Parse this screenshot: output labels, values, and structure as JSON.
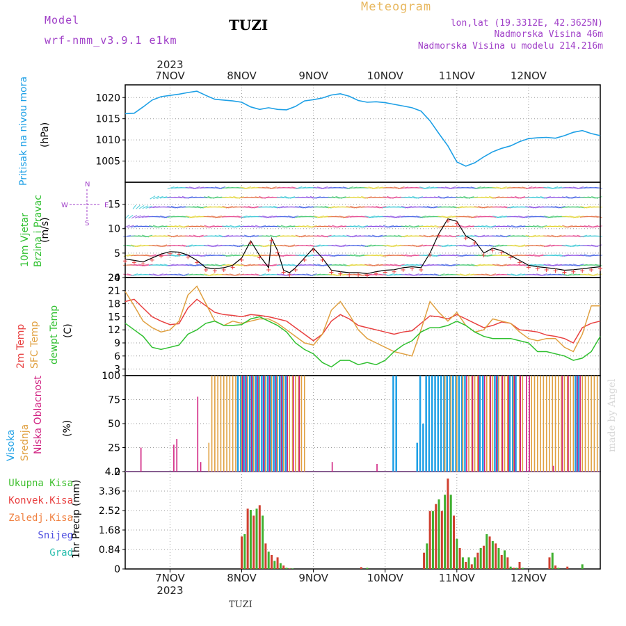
{
  "header": {
    "model_caption": "Model",
    "model_name": "wrf-nmm_v3.9.1 e1km",
    "station": "TUZI",
    "meteogram_label": "Meteogram",
    "coords": "lon,lat (19.3312E, 42.3625N)",
    "elevation": "Nadmorska Visina 46m",
    "model_elevation": "Nadmorska Visina u modelu 214.216m"
  },
  "footer": {
    "station": "TUZI",
    "watermark": "made by Angel"
  },
  "colors": {
    "pressure": "#1ea0e6",
    "temp2m": "#e84040",
    "sfc_temp": "#e0a040",
    "dewpoint": "#30c030",
    "cloud_high": "#1ea0e6",
    "cloud_mid": "#e0a040",
    "cloud_low": "#d02080",
    "precip_total": "#40b030",
    "precip_conv": "#d04030",
    "grid": "#999999",
    "violet": "#a040c8"
  },
  "time_axis": {
    "year": "2023",
    "dates": [
      "7NOV",
      "8NOV",
      "9NOV",
      "10NOV",
      "11NOV",
      "12NOV"
    ],
    "range_hours": [
      -15,
      144
    ],
    "tick_hours": [
      0,
      24,
      48,
      72,
      96,
      120
    ]
  },
  "chart_data": [
    {
      "id": "pressure",
      "type": "line",
      "ylabel": "Pritisak na nivou mora",
      "unit": "(hPa)",
      "ylim": [
        1000,
        1023
      ],
      "yticks": [
        1005,
        1010,
        1015,
        1020
      ],
      "grid": true,
      "x": [
        -15,
        -12,
        -9,
        -6,
        -3,
        0,
        3,
        6,
        9,
        12,
        15,
        18,
        21,
        24,
        27,
        30,
        33,
        36,
        39,
        42,
        45,
        48,
        51,
        54,
        57,
        60,
        63,
        66,
        69,
        72,
        75,
        78,
        81,
        84,
        87,
        90,
        93,
        96,
        99,
        102,
        105,
        108,
        111,
        114,
        117,
        120,
        123,
        126,
        129,
        132,
        135,
        138,
        141,
        144
      ],
      "values": [
        1016.2,
        1016.3,
        1017.8,
        1019.4,
        1020.2,
        1020.5,
        1020.8,
        1021.2,
        1021.5,
        1020.5,
        1019.6,
        1019.4,
        1019.2,
        1018.9,
        1017.8,
        1017.2,
        1017.6,
        1017.2,
        1017.1,
        1017.9,
        1019.2,
        1019.5,
        1019.9,
        1020.6,
        1020.9,
        1020.3,
        1019.3,
        1018.9,
        1019.0,
        1018.8,
        1018.4,
        1018.0,
        1017.6,
        1016.8,
        1014.5,
        1011.5,
        1008.6,
        1004.8,
        1003.8,
        1004.6,
        1006.0,
        1007.2,
        1008.0,
        1008.6,
        1009.6,
        1010.3,
        1010.5,
        1010.6,
        1010.4,
        1011.0,
        1011.8,
        1012.2,
        1011.5,
        1011.0
      ]
    },
    {
      "id": "wind",
      "type": "line",
      "ylabel": "10m Vjetar Brzina i Pravac",
      "unit": "(m/s)",
      "compass": {
        "north": "N",
        "west": "W",
        "east": "E",
        "south": "S"
      },
      "ylim": [
        0,
        19.5
      ],
      "yticks": [
        0,
        5,
        10,
        15
      ],
      "grid": true,
      "series": [
        {
          "x": [
            -15,
            -12,
            -9,
            -6,
            -3,
            0,
            3,
            6,
            9,
            12,
            15,
            18,
            21,
            24,
            27,
            30,
            33,
            34,
            36,
            38,
            40,
            42,
            45,
            48,
            51,
            54,
            57,
            60,
            63,
            66,
            69,
            72,
            75,
            78,
            81,
            84,
            87,
            90,
            93,
            96,
            99,
            102,
            105,
            108,
            111,
            114,
            117,
            120,
            123,
            126,
            129,
            132,
            135,
            138,
            141,
            144
          ],
          "values": [
            3.8,
            3.5,
            3.2,
            4.0,
            4.8,
            5.3,
            5.2,
            4.6,
            3.5,
            2.0,
            1.8,
            2.0,
            2.5,
            4.0,
            7.5,
            4.5,
            2.0,
            8.0,
            5.5,
            1.5,
            1.0,
            2.0,
            4.0,
            6.0,
            4.0,
            1.5,
            1.2,
            1.0,
            1.0,
            0.8,
            1.2,
            1.5,
            1.6,
            2.0,
            2.2,
            2.0,
            5.0,
            9.0,
            12.0,
            11.5,
            8.5,
            7.5,
            5.0,
            6.0,
            5.5,
            4.5,
            3.5,
            2.5,
            2.2,
            2.0,
            1.8,
            1.5,
            1.6,
            1.8,
            2.0,
            2.2
          ]
        }
      ]
    },
    {
      "id": "temperature",
      "type": "line",
      "ylabel": "2m Temp / SFC Temp / dewpt Temp",
      "unit": "(C)",
      "ylim": [
        1.5,
        24
      ],
      "yticks": [
        3,
        6,
        9,
        12,
        15,
        18,
        21,
        24
      ],
      "grid": true,
      "x": [
        -15,
        -12,
        -9,
        -6,
        -3,
        0,
        3,
        6,
        9,
        12,
        15,
        18,
        21,
        24,
        27,
        30,
        33,
        36,
        39,
        42,
        45,
        48,
        51,
        54,
        57,
        60,
        63,
        66,
        69,
        72,
        75,
        78,
        81,
        84,
        87,
        90,
        93,
        96,
        99,
        102,
        105,
        108,
        111,
        114,
        117,
        120,
        123,
        126,
        129,
        132,
        135,
        138,
        141,
        144
      ],
      "series": [
        {
          "name": "2m Temp",
          "values": [
            18.5,
            19.0,
            17.0,
            15.0,
            14.0,
            13.2,
            13.4,
            17.0,
            19.0,
            17.5,
            16.0,
            15.5,
            15.3,
            15.0,
            15.5,
            15.3,
            15.0,
            14.5,
            14.0,
            12.5,
            11.0,
            9.5,
            11.0,
            14.0,
            15.5,
            14.5,
            13.0,
            12.5,
            12.0,
            11.5,
            11.0,
            11.5,
            11.8,
            13.5,
            15.2,
            15.0,
            14.5,
            15.5,
            14.5,
            13.5,
            12.5,
            13.0,
            13.8,
            13.5,
            12.0,
            11.8,
            11.5,
            10.8,
            10.5,
            10.0,
            9.0,
            12.5,
            13.5,
            14.0
          ]
        },
        {
          "name": "SFC Temp",
          "values": [
            20.8,
            17.5,
            14.0,
            12.5,
            11.5,
            12.0,
            14.0,
            20.0,
            22.0,
            18.0,
            14.0,
            13.0,
            14.0,
            13.5,
            14.0,
            14.5,
            14.5,
            13.5,
            12.0,
            10.5,
            9.0,
            8.5,
            11.0,
            16.5,
            18.5,
            15.5,
            12.0,
            10.0,
            9.0,
            8.0,
            7.0,
            6.5,
            6.0,
            12.0,
            18.5,
            16.0,
            14.0,
            16.0,
            13.0,
            11.5,
            12.0,
            14.5,
            14.0,
            13.5,
            11.5,
            10.0,
            9.5,
            10.0,
            10.0,
            8.0,
            7.0,
            11.0,
            17.5,
            17.5
          ]
        },
        {
          "name": "dewpt Temp",
          "values": [
            13.5,
            12.0,
            10.5,
            8.0,
            7.5,
            8.0,
            8.5,
            11.0,
            12.0,
            13.5,
            14.0,
            13.0,
            13.0,
            13.2,
            14.5,
            15.0,
            14.0,
            13.0,
            11.5,
            9.0,
            7.5,
            6.5,
            4.5,
            3.5,
            5.0,
            5.0,
            4.0,
            4.5,
            4.0,
            5.0,
            7.0,
            8.5,
            9.5,
            11.5,
            12.5,
            12.5,
            13.0,
            14.0,
            13.0,
            11.5,
            10.5,
            10.0,
            10.0,
            10.0,
            9.5,
            9.0,
            7.0,
            7.0,
            6.5,
            6.0,
            5.0,
            5.5,
            7.0,
            10.5
          ]
        }
      ]
    },
    {
      "id": "clouds",
      "type": "bar",
      "ylabel": "Visoka / Srednja / Niska Oblacnost",
      "unit": "(%)",
      "ylim": [
        0,
        100
      ],
      "yticks": [
        0,
        25,
        50,
        75,
        100
      ],
      "grid": true,
      "series": [
        {
          "name": "Visoka Oblacnost",
          "x": [
            23,
            24,
            25,
            26,
            27,
            28,
            29,
            30,
            31,
            32,
            33,
            34,
            35,
            36,
            37,
            38,
            39,
            75,
            76,
            83,
            84,
            85,
            86,
            87,
            88,
            89,
            90,
            91,
            92,
            93,
            94,
            95,
            96,
            97,
            98,
            99,
            104,
            105,
            109,
            110,
            114,
            115,
            116,
            136,
            137
          ],
          "values": [
            100,
            100,
            100,
            100,
            100,
            100,
            100,
            100,
            100,
            100,
            100,
            100,
            100,
            100,
            100,
            100,
            100,
            100,
            100,
            30,
            100,
            50,
            100,
            100,
            100,
            100,
            100,
            100,
            100,
            100,
            100,
            100,
            100,
            100,
            100,
            100,
            100,
            100,
            100,
            100,
            100,
            100,
            100,
            100,
            100
          ]
        },
        {
          "name": "Srednja Oblacnost",
          "x": [
            13,
            14,
            15,
            16,
            17,
            18,
            19,
            20,
            21,
            22,
            24,
            26,
            28,
            30,
            32,
            34,
            36,
            38,
            40,
            41,
            42,
            43,
            44,
            45,
            92,
            94,
            96,
            98,
            100,
            101,
            102,
            103,
            106,
            107,
            108,
            110,
            111,
            112,
            113,
            115,
            117,
            118,
            121,
            122,
            123,
            124,
            125,
            126,
            127,
            128,
            129,
            130,
            131,
            132,
            133,
            134,
            135,
            138,
            139,
            140,
            141,
            142,
            143
          ],
          "values": [
            30,
            100,
            100,
            100,
            100,
            100,
            100,
            100,
            100,
            100,
            100,
            100,
            100,
            100,
            100,
            100,
            100,
            100,
            100,
            100,
            100,
            100,
            100,
            100,
            100,
            100,
            100,
            100,
            100,
            100,
            100,
            100,
            100,
            100,
            100,
            100,
            100,
            100,
            100,
            100,
            100,
            100,
            100,
            100,
            100,
            100,
            100,
            100,
            100,
            100,
            100,
            100,
            100,
            100,
            100,
            100,
            100,
            100,
            100,
            100,
            100,
            100,
            100
          ]
        },
        {
          "name": "Niska Oblacnost",
          "x": [
            -10,
            1,
            2,
            9,
            10,
            24,
            25,
            27,
            29,
            31,
            33,
            35,
            37,
            39,
            41,
            43,
            54,
            69,
            99,
            101,
            103,
            105,
            107,
            109,
            111,
            113,
            115,
            117,
            119,
            120,
            128,
            131,
            133,
            136,
            137
          ],
          "values": [
            25,
            28,
            34,
            78,
            10,
            100,
            100,
            100,
            100,
            100,
            100,
            100,
            100,
            100,
            100,
            100,
            10,
            8,
            100,
            100,
            100,
            100,
            100,
            100,
            100,
            100,
            100,
            100,
            100,
            100,
            6,
            100,
            100,
            100,
            100
          ]
        }
      ]
    },
    {
      "id": "precip",
      "type": "bar",
      "ylabel": "1hr Precip",
      "unit": "(mm)",
      "ylim": [
        0,
        4.2
      ],
      "yticks": [
        0,
        0.84,
        1.68,
        2.52,
        3.36,
        4.2
      ],
      "grid": true,
      "legend": [
        "Ukupna Kisa",
        "Konvek.Kisa",
        "Zaledj.Kisa",
        "Snijeg",
        "Grad"
      ],
      "legend_colors": [
        "#40c030",
        "#e84040",
        "#f08040",
        "#5050e0",
        "#30c0b0"
      ],
      "x": [
        24,
        25,
        26,
        27,
        28,
        29,
        30,
        31,
        32,
        33,
        34,
        35,
        36,
        37,
        38,
        39,
        40,
        41,
        64,
        66,
        85,
        86,
        87,
        88,
        89,
        90,
        91,
        92,
        93,
        94,
        95,
        96,
        97,
        98,
        99,
        100,
        101,
        102,
        103,
        104,
        105,
        106,
        107,
        108,
        109,
        110,
        111,
        112,
        113,
        114,
        115,
        116,
        117,
        118,
        127,
        128,
        129,
        130,
        133,
        138
      ],
      "values": [
        1.4,
        1.5,
        2.6,
        2.55,
        2.3,
        2.6,
        2.75,
        2.3,
        1.1,
        0.75,
        0.6,
        0.35,
        0.5,
        0.25,
        0.15,
        0.05,
        0.02,
        0.02,
        0.08,
        0.05,
        0.7,
        1.1,
        2.5,
        2.5,
        2.8,
        3.0,
        2.5,
        3.2,
        3.9,
        3.2,
        2.3,
        1.3,
        0.9,
        0.5,
        0.3,
        0.5,
        0.2,
        0.5,
        0.7,
        0.9,
        1.0,
        1.5,
        1.4,
        1.2,
        1.1,
        0.9,
        0.6,
        0.8,
        0.5,
        0.1,
        0.05,
        0.05,
        0.3,
        0.05,
        0.5,
        0.7,
        0.15,
        0.05,
        0.1,
        0.2
      ]
    }
  ]
}
